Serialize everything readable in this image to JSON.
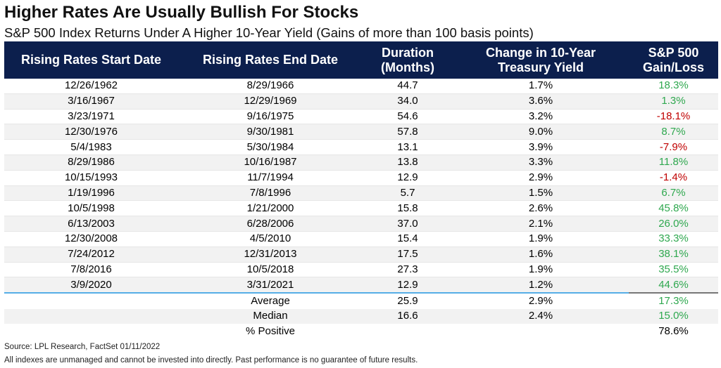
{
  "title": "Higher Rates Are Usually Bullish For Stocks",
  "subtitle": "S&P 500 Index Returns Under A Higher 10-Year Yield (Gains of more than 100 basis points)",
  "chart_data": {
    "type": "table",
    "columns": [
      "Rising Rates Start Date",
      "Rising Rates End Date",
      "Duration (Months)",
      "Change in 10-Year Treasury Yield",
      "S&P 500 Gain/Loss"
    ],
    "rows": [
      {
        "start": "12/26/1962",
        "end": "8/29/1966",
        "duration": "44.7",
        "yield_change": "1.7%",
        "gain": "18.3%"
      },
      {
        "start": "3/16/1967",
        "end": "12/29/1969",
        "duration": "34.0",
        "yield_change": "3.6%",
        "gain": "1.3%"
      },
      {
        "start": "3/23/1971",
        "end": "9/16/1975",
        "duration": "54.6",
        "yield_change": "3.2%",
        "gain": "-18.1%"
      },
      {
        "start": "12/30/1976",
        "end": "9/30/1981",
        "duration": "57.8",
        "yield_change": "9.0%",
        "gain": "8.7%"
      },
      {
        "start": "5/4/1983",
        "end": "5/30/1984",
        "duration": "13.1",
        "yield_change": "3.9%",
        "gain": "-7.9%"
      },
      {
        "start": "8/29/1986",
        "end": "10/16/1987",
        "duration": "13.8",
        "yield_change": "3.3%",
        "gain": "11.8%"
      },
      {
        "start": "10/15/1993",
        "end": "11/7/1994",
        "duration": "12.9",
        "yield_change": "2.9%",
        "gain": "-1.4%"
      },
      {
        "start": "1/19/1996",
        "end": "7/8/1996",
        "duration": "5.7",
        "yield_change": "1.5%",
        "gain": "6.7%"
      },
      {
        "start": "10/5/1998",
        "end": "1/21/2000",
        "duration": "15.8",
        "yield_change": "2.6%",
        "gain": "45.8%"
      },
      {
        "start": "6/13/2003",
        "end": "6/28/2006",
        "duration": "37.0",
        "yield_change": "2.1%",
        "gain": "26.0%"
      },
      {
        "start": "12/30/2008",
        "end": "4/5/2010",
        "duration": "15.4",
        "yield_change": "1.9%",
        "gain": "33.3%"
      },
      {
        "start": "7/24/2012",
        "end": "12/31/2013",
        "duration": "17.5",
        "yield_change": "1.6%",
        "gain": "38.1%"
      },
      {
        "start": "7/8/2016",
        "end": "10/5/2018",
        "duration": "27.3",
        "yield_change": "1.9%",
        "gain": "35.5%"
      },
      {
        "start": "3/9/2020",
        "end": "3/31/2021",
        "duration": "12.9",
        "yield_change": "1.2%",
        "gain": "44.6%"
      }
    ],
    "summary": [
      {
        "label": "Average",
        "duration": "25.9",
        "yield_change": "2.9%",
        "gain": "17.3%"
      },
      {
        "label": "Median",
        "duration": "16.6",
        "yield_change": "2.4%",
        "gain": "15.0%"
      },
      {
        "label": "% Positive",
        "duration": "",
        "yield_change": "",
        "gain": "78.6%"
      }
    ],
    "colors": {
      "header_bg": "#0c1f4d",
      "positive": "#2fa84f",
      "negative": "#c00000"
    }
  },
  "source": "Source: LPL Research, FactSet 01/11/2022",
  "disclaimer": "All indexes are unmanaged and cannot be invested into directly. Past performance is no guarantee of future results."
}
